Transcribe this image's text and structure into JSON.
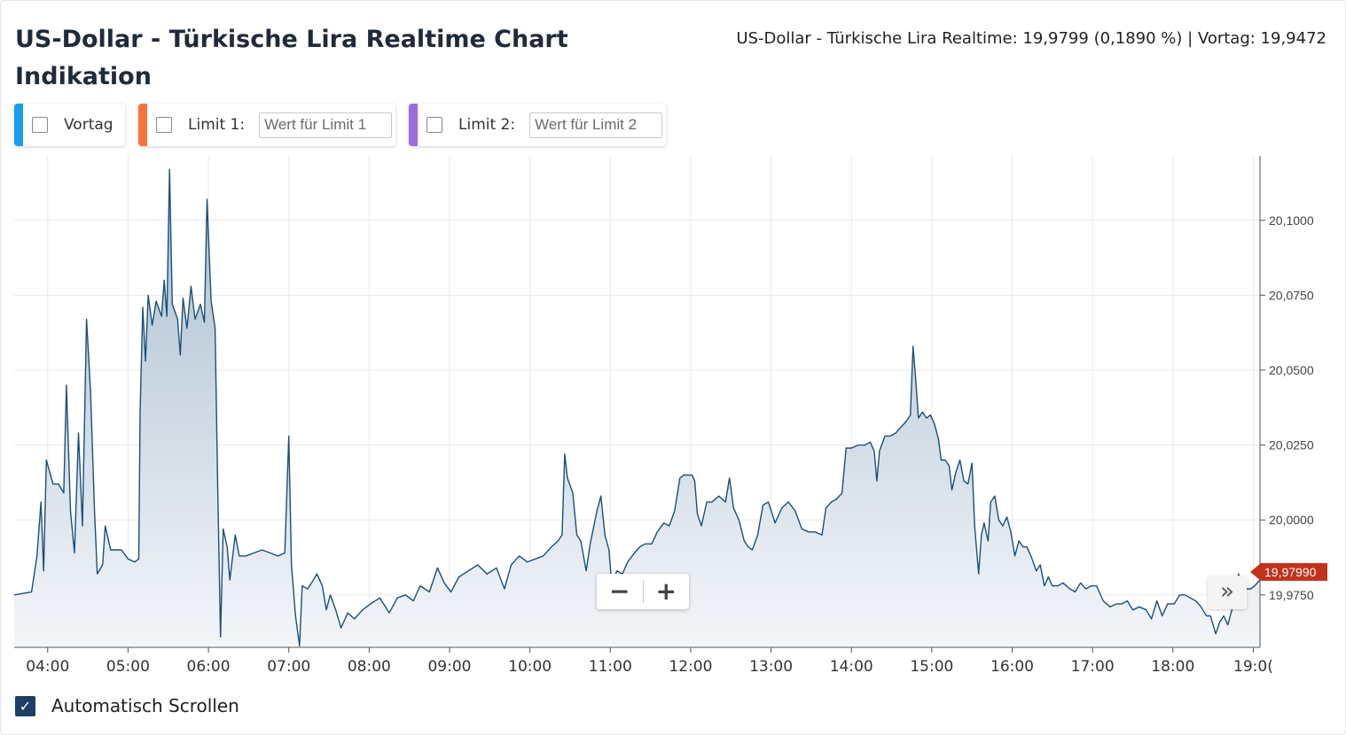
{
  "header": {
    "title": "US-Dollar - Türkische Lira Realtime Chart Indikation",
    "quote": "US-Dollar - Türkische Lira Realtime: 19,9799 (0,1890 %) | Vortag: 19,9472"
  },
  "controls": {
    "vortag": {
      "label": "Vortag",
      "color": "#1a9bf0"
    },
    "limit1": {
      "label": "Limit 1:",
      "placeholder": "Wert für Limit 1",
      "color": "#f4743b"
    },
    "limit2": {
      "label": "Limit 2:",
      "placeholder": "Wert für Limit 2",
      "color": "#9a6ddc"
    }
  },
  "zoom": {
    "minus": "−",
    "plus": "+"
  },
  "nav": {
    "next": "»"
  },
  "autoscroll": {
    "label": "Automatisch Scrollen",
    "checked": true,
    "check": "✓"
  },
  "colors": {
    "line": "#1b4f7a",
    "area_top": "#a9bdcf",
    "area_bottom": "#f3f6f9",
    "last_badge": "#c2321b",
    "grid": "#e9e9e9"
  },
  "chart_data": {
    "type": "area",
    "x_unit": "time of day",
    "xlim": [
      "03:35",
      "19:05"
    ],
    "ylim": [
      19.9575,
      20.1215
    ],
    "y_ticks": [
      19.975,
      20.0,
      20.025,
      20.05,
      20.075,
      20.1
    ],
    "y_tick_labels": [
      "19,9750",
      "20,0000",
      "20,0250",
      "20,0500",
      "20,0750",
      "20,1000"
    ],
    "x_ticks": [
      "04:00",
      "05:00",
      "06:00",
      "07:00",
      "08:00",
      "09:00",
      "10:00",
      "11:00",
      "12:00",
      "13:00",
      "14:00",
      "15:00",
      "16:00",
      "17:00",
      "18:00",
      "19:00"
    ],
    "x_tick_labels": [
      "04:00",
      "05:00",
      "06:00",
      "07:00",
      "08:00",
      "09:00",
      "10:00",
      "11:00",
      "12:00",
      "13:00",
      "14:00",
      "15:00",
      "16:00",
      "17:00",
      "18:00",
      "19:0("
    ],
    "grid": true,
    "last_value_label": "19,97990",
    "series": [
      {
        "points": [
          [
            "03:35",
            19.975
          ],
          [
            "03:48",
            19.976
          ],
          [
            "03:52",
            19.988
          ],
          [
            "03:55",
            20.006
          ],
          [
            "03:57",
            19.983
          ],
          [
            "03:59",
            20.02
          ],
          [
            "04:04",
            20.012
          ],
          [
            "04:08",
            20.012
          ],
          [
            "04:12",
            20.009
          ],
          [
            "04:14",
            20.045
          ],
          [
            "04:17",
            20.003
          ],
          [
            "04:20",
            19.989
          ],
          [
            "04:23",
            20.029
          ],
          [
            "04:26",
            19.998
          ],
          [
            "04:29",
            20.067
          ],
          [
            "04:32",
            20.043
          ],
          [
            "04:35",
            20.003
          ],
          [
            "04:37",
            19.982
          ],
          [
            "04:41",
            19.985
          ],
          [
            "04:43",
            19.998
          ],
          [
            "04:47",
            19.99
          ],
          [
            "04:55",
            19.99
          ],
          [
            "05:00",
            19.987
          ],
          [
            "05:05",
            19.986
          ],
          [
            "05:08",
            19.987
          ],
          [
            "05:09",
            20.036
          ],
          [
            "05:11",
            20.071
          ],
          [
            "05:13",
            20.053
          ],
          [
            "05:15",
            20.075
          ],
          [
            "05:18",
            20.065
          ],
          [
            "05:21",
            20.073
          ],
          [
            "05:25",
            20.068
          ],
          [
            "05:27",
            20.08
          ],
          [
            "05:29",
            20.068
          ],
          [
            "05:31",
            20.117
          ],
          [
            "05:33",
            20.072
          ],
          [
            "05:37",
            20.067
          ],
          [
            "05:39",
            20.055
          ],
          [
            "05:41",
            20.074
          ],
          [
            "05:44",
            20.064
          ],
          [
            "05:47",
            20.078
          ],
          [
            "05:50",
            20.067
          ],
          [
            "05:54",
            20.072
          ],
          [
            "05:57",
            20.066
          ],
          [
            "05:59",
            20.107
          ],
          [
            "06:02",
            20.073
          ],
          [
            "06:05",
            20.064
          ],
          [
            "06:07",
            20.01
          ],
          [
            "06:09",
            19.961
          ],
          [
            "06:11",
            19.997
          ],
          [
            "06:14",
            19.991
          ],
          [
            "06:16",
            19.98
          ],
          [
            "06:20",
            19.995
          ],
          [
            "06:23",
            19.988
          ],
          [
            "06:28",
            19.988
          ],
          [
            "06:34",
            19.989
          ],
          [
            "06:40",
            19.99
          ],
          [
            "06:46",
            19.989
          ],
          [
            "06:52",
            19.988
          ],
          [
            "06:57",
            19.989
          ],
          [
            "07:00",
            20.028
          ],
          [
            "07:02",
            19.985
          ],
          [
            "07:05",
            19.968
          ],
          [
            "07:08",
            19.958
          ],
          [
            "07:10",
            19.978
          ],
          [
            "07:14",
            19.977
          ],
          [
            "07:17",
            19.979
          ],
          [
            "07:21",
            19.982
          ],
          [
            "07:25",
            19.978
          ],
          [
            "07:28",
            19.97
          ],
          [
            "07:31",
            19.975
          ],
          [
            "07:35",
            19.97
          ],
          [
            "07:39",
            19.964
          ],
          [
            "07:44",
            19.969
          ],
          [
            "07:49",
            19.967
          ],
          [
            "07:55",
            19.97
          ],
          [
            "08:01",
            19.972
          ],
          [
            "08:08",
            19.974
          ],
          [
            "08:15",
            19.969
          ],
          [
            "08:21",
            19.974
          ],
          [
            "08:27",
            19.975
          ],
          [
            "08:33",
            19.973
          ],
          [
            "08:38",
            19.978
          ],
          [
            "08:45",
            19.976
          ],
          [
            "08:51",
            19.984
          ],
          [
            "08:56",
            19.979
          ],
          [
            "09:01",
            19.976
          ],
          [
            "09:07",
            19.981
          ],
          [
            "09:14",
            19.983
          ],
          [
            "09:21",
            19.985
          ],
          [
            "09:28",
            19.982
          ],
          [
            "09:35",
            19.984
          ],
          [
            "09:41",
            19.977
          ],
          [
            "09:46",
            19.985
          ],
          [
            "09:52",
            19.988
          ],
          [
            "09:58",
            19.986
          ],
          [
            "10:04",
            19.987
          ],
          [
            "10:10",
            19.988
          ],
          [
            "10:16",
            19.991
          ],
          [
            "10:21",
            19.993
          ],
          [
            "10:24",
            19.995
          ],
          [
            "10:26",
            20.022
          ],
          [
            "10:28",
            20.014
          ],
          [
            "10:32",
            20.009
          ],
          [
            "10:35",
            19.995
          ],
          [
            "10:38",
            19.993
          ],
          [
            "10:42",
            19.983
          ],
          [
            "10:45",
            19.992
          ],
          [
            "10:50",
            20.003
          ],
          [
            "10:53",
            20.008
          ],
          [
            "10:56",
            19.995
          ],
          [
            "10:59",
            19.99
          ],
          [
            "11:01",
            19.979
          ],
          [
            "11:05",
            19.983
          ],
          [
            "11:09",
            19.982
          ],
          [
            "11:13",
            19.986
          ],
          [
            "11:18",
            19.989
          ],
          [
            "11:22",
            19.991
          ],
          [
            "11:26",
            19.992
          ],
          [
            "11:31",
            19.992
          ],
          [
            "11:35",
            19.996
          ],
          [
            "11:40",
            19.999
          ],
          [
            "11:44",
            19.998
          ],
          [
            "11:48",
            20.003
          ],
          [
            "11:52",
            20.014
          ],
          [
            "11:55",
            20.015
          ],
          [
            "11:58",
            20.015
          ],
          [
            "12:01",
            20.015
          ],
          [
            "12:03",
            20.013
          ],
          [
            "12:05",
            20.002
          ],
          [
            "12:08",
            19.998
          ],
          [
            "12:12",
            20.006
          ],
          [
            "12:16",
            20.006
          ],
          [
            "12:21",
            20.008
          ],
          [
            "12:26",
            20.006
          ],
          [
            "12:29",
            20.014
          ],
          [
            "12:32",
            20.004
          ],
          [
            "12:36",
            20.0
          ],
          [
            "12:40",
            19.993
          ],
          [
            "12:43",
            19.991
          ],
          [
            "12:46",
            19.99
          ],
          [
            "12:50",
            19.995
          ],
          [
            "12:54",
            20.005
          ],
          [
            "12:58",
            20.006
          ],
          [
            "13:03",
            19.999
          ],
          [
            "13:08",
            20.004
          ],
          [
            "13:13",
            20.006
          ],
          [
            "13:18",
            20.003
          ],
          [
            "13:23",
            19.997
          ],
          [
            "13:28",
            19.996
          ],
          [
            "13:33",
            19.996
          ],
          [
            "13:38",
            19.995
          ],
          [
            "13:41",
            20.004
          ],
          [
            "13:45",
            20.006
          ],
          [
            "13:49",
            20.007
          ],
          [
            "13:53",
            20.009
          ],
          [
            "13:56",
            20.024
          ],
          [
            "14:00",
            20.024
          ],
          [
            "14:05",
            20.025
          ],
          [
            "14:10",
            20.025
          ],
          [
            "14:14",
            20.026
          ],
          [
            "14:17",
            20.023
          ],
          [
            "14:19",
            20.013
          ],
          [
            "14:21",
            20.023
          ],
          [
            "14:25",
            20.028
          ],
          [
            "14:29",
            20.028
          ],
          [
            "14:33",
            20.029
          ],
          [
            "14:37",
            20.031
          ],
          [
            "14:41",
            20.033
          ],
          [
            "14:44",
            20.035
          ],
          [
            "14:46",
            20.058
          ],
          [
            "14:48",
            20.047
          ],
          [
            "14:50",
            20.034
          ],
          [
            "14:53",
            20.036
          ],
          [
            "14:56",
            20.034
          ],
          [
            "14:59",
            20.035
          ],
          [
            "15:02",
            20.032
          ],
          [
            "15:05",
            20.027
          ],
          [
            "15:07",
            20.02
          ],
          [
            "15:10",
            20.02
          ],
          [
            "15:13",
            20.018
          ],
          [
            "15:15",
            20.01
          ],
          [
            "15:18",
            20.016
          ],
          [
            "15:21",
            20.02
          ],
          [
            "15:24",
            20.013
          ],
          [
            "15:27",
            20.012
          ],
          [
            "15:30",
            20.019
          ],
          [
            "15:32",
            19.998
          ],
          [
            "15:35",
            19.982
          ],
          [
            "15:37",
            19.995
          ],
          [
            "15:39",
            19.999
          ],
          [
            "15:42",
            19.993
          ],
          [
            "15:44",
            20.006
          ],
          [
            "15:47",
            20.008
          ],
          [
            "15:50",
            20.0
          ],
          [
            "15:53",
            19.998
          ],
          [
            "15:56",
            20.001
          ],
          [
            "15:59",
            19.996
          ],
          [
            "16:02",
            19.988
          ],
          [
            "16:05",
            19.993
          ],
          [
            "16:08",
            19.991
          ],
          [
            "16:11",
            19.991
          ],
          [
            "16:14",
            19.988
          ],
          [
            "16:18",
            19.983
          ],
          [
            "16:21",
            19.985
          ],
          [
            "16:24",
            19.978
          ],
          [
            "16:27",
            19.981
          ],
          [
            "16:30",
            19.978
          ],
          [
            "16:34",
            19.978
          ],
          [
            "16:38",
            19.979
          ],
          [
            "16:43",
            19.977
          ],
          [
            "16:47",
            19.976
          ],
          [
            "16:51",
            19.979
          ],
          [
            "16:55",
            19.977
          ],
          [
            "16:59",
            19.978
          ],
          [
            "17:03",
            19.978
          ],
          [
            "17:08",
            19.973
          ],
          [
            "17:13",
            19.971
          ],
          [
            "17:18",
            19.972
          ],
          [
            "17:22",
            19.972
          ],
          [
            "17:26",
            19.973
          ],
          [
            "17:30",
            19.97
          ],
          [
            "17:35",
            19.971
          ],
          [
            "17:40",
            19.97
          ],
          [
            "17:44",
            19.967
          ],
          [
            "17:48",
            19.973
          ],
          [
            "17:52",
            19.968
          ],
          [
            "17:56",
            19.972
          ],
          [
            "18:01",
            19.972
          ],
          [
            "18:05",
            19.975
          ],
          [
            "18:09",
            19.975
          ],
          [
            "18:13",
            19.974
          ],
          [
            "18:17",
            19.973
          ],
          [
            "18:21",
            19.971
          ],
          [
            "18:25",
            19.968
          ],
          [
            "18:28",
            19.968
          ],
          [
            "18:32",
            19.962
          ],
          [
            "18:35",
            19.966
          ],
          [
            "18:38",
            19.968
          ],
          [
            "18:41",
            19.965
          ],
          [
            "18:44",
            19.97
          ],
          [
            "18:47",
            19.976
          ],
          [
            "18:49",
            19.982
          ],
          [
            "18:52",
            19.978
          ],
          [
            "18:55",
            19.977
          ],
          [
            "18:58",
            19.977
          ],
          [
            "19:01",
            19.978
          ],
          [
            "19:05",
            19.98
          ]
        ]
      }
    ]
  }
}
